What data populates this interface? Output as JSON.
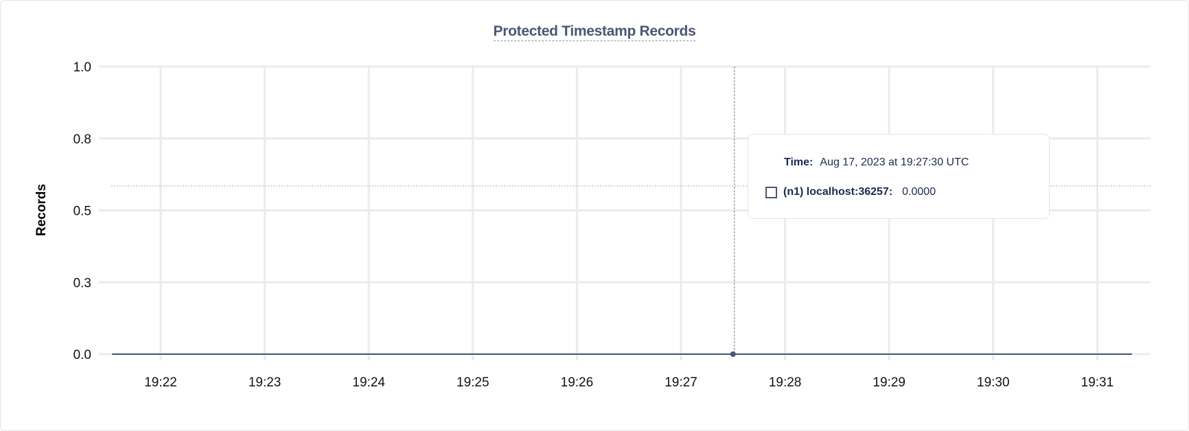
{
  "chart_data": {
    "type": "line",
    "title": "Protected Timestamp Records",
    "ylabel": "Records",
    "xlabel": "",
    "ylim": [
      0,
      1
    ],
    "yticks": [
      {
        "value": 0,
        "label": "0.0"
      },
      {
        "value": 0.25,
        "label": "0.3"
      },
      {
        "value": 0.5,
        "label": "0.5"
      },
      {
        "value": 0.75,
        "label": "0.8"
      },
      {
        "value": 1,
        "label": "1.0"
      }
    ],
    "xlim": [
      "19:21:30",
      "19:31:45"
    ],
    "xticks": [
      "19:22",
      "19:23",
      "19:24",
      "19:25",
      "19:26",
      "19:27",
      "19:28",
      "19:29",
      "19:30",
      "19:31"
    ],
    "grid": true,
    "series": [
      {
        "name": "(n1) localhost:36257",
        "color": "#475872",
        "x": [
          "19:21:32",
          "19:27:30",
          "19:31:20"
        ],
        "values": [
          0,
          0,
          0
        ]
      }
    ],
    "hover": {
      "x": "19:27:30"
    },
    "tooltip": {
      "time_label": "Time:",
      "time_value": "Aug 17, 2023 at 19:27:30 UTC",
      "series_label": "(n1) localhost:36257:",
      "series_value": "0.0000"
    }
  }
}
